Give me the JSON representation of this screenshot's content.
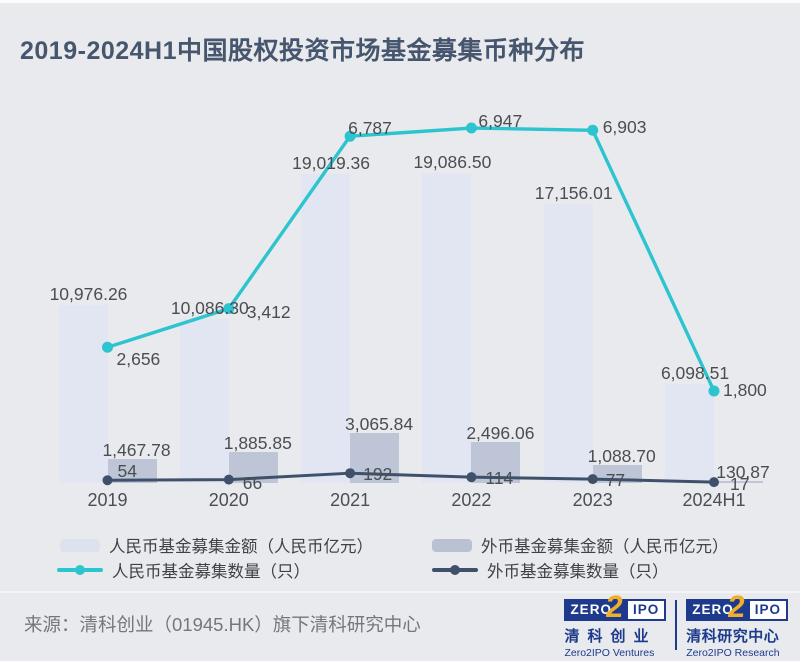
{
  "title": "2019-2024H1中国股权投资市场基金募集币种分布",
  "chart_data": {
    "type": "bar+line combo",
    "title": "2019-2024H1中国股权投资市场基金募集币种分布",
    "categories": [
      "2019",
      "2020",
      "2021",
      "2022",
      "2023",
      "2024H1"
    ],
    "series": [
      {
        "name": "人民币基金募集金额（人民币亿元）",
        "type": "bar",
        "color": "#e2e6f2",
        "values": [
          10976.26,
          10086.3,
          19019.36,
          19086.5,
          17156.01,
          6098.51
        ],
        "labels": [
          "10,976.26",
          "10,086.30",
          "19,019.36",
          "19,086.50",
          "17,156.01",
          "6,098.51"
        ]
      },
      {
        "name": "外币基金募集金额（人民币亿元）",
        "type": "bar",
        "color": "#bdc5d6",
        "values": [
          1467.78,
          1885.85,
          3065.84,
          2496.06,
          1088.7,
          130.87
        ],
        "labels": [
          "1,467.78",
          "1,885.85",
          "3,065.84",
          "2,496.06",
          "1,088.70",
          "130.87"
        ]
      },
      {
        "name": "人民币基金募集数量（只）",
        "type": "line",
        "color": "#2cc4ce",
        "values": [
          2656,
          3412,
          6787,
          6947,
          6903,
          1800
        ],
        "labels": [
          "2,656",
          "3,412",
          "6,787",
          "6,947",
          "6,903",
          "1,800"
        ]
      },
      {
        "name": "外币基金募集数量（只）",
        "type": "line",
        "color": "#3f506a",
        "values": [
          54,
          66,
          192,
          114,
          77,
          17
        ],
        "labels": [
          "54",
          "66",
          "192",
          "114",
          "77",
          "17"
        ]
      }
    ],
    "axes": {
      "x_ticks": [
        "2019",
        "2020",
        "2021",
        "2022",
        "2023",
        "2024H1"
      ],
      "y_axes_visible": false,
      "grid": false,
      "data_labels": true,
      "legend_position": "bottom"
    }
  },
  "footer": {
    "source": "来源：清科创业（01945.HK）旗下清科研究中心",
    "logos": [
      {
        "mark": {
          "zero": "ZERO",
          "two": "2",
          "ipo": "IPO"
        },
        "cn": "清科创业",
        "en": "Zero2IPO Ventures"
      },
      {
        "mark": {
          "zero": "ZERO",
          "two": "2",
          "ipo": "IPO"
        },
        "cn": "清科研究中心",
        "en": "Zero2IPO Research"
      }
    ]
  },
  "theme": {
    "background": "#e9eaed",
    "title_color": "#46566e",
    "label_color": "#4a4d52",
    "source_color": "#74777c",
    "logo_navy": "#1d3a8c",
    "logo_gold": "#efae2b"
  }
}
